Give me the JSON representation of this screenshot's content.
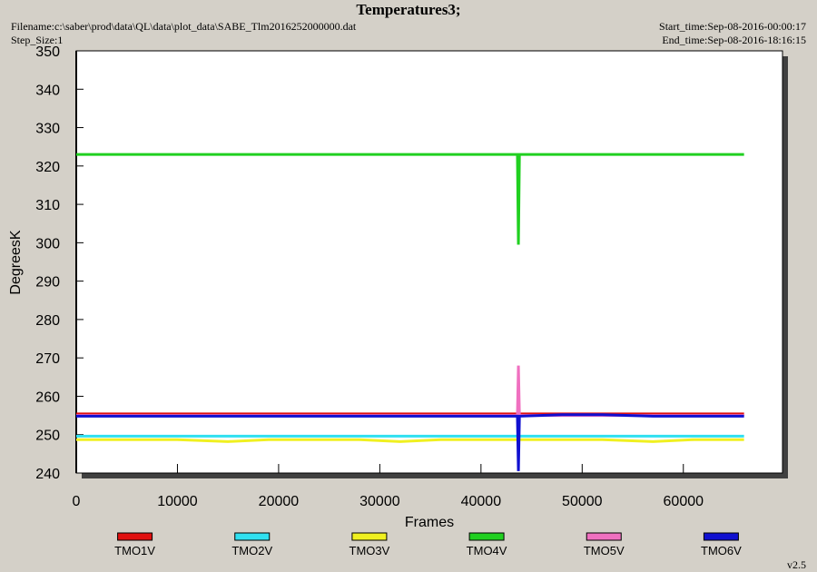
{
  "chart_data": {
    "type": "line",
    "title": "Temperatures3;",
    "filename": "Filename:c:\\saber\\prod\\data\\QL\\data\\plot_data\\SABE_Tlm2016252000000.dat",
    "step_size": "Step_Size:1",
    "start_time": "Start_time:Sep-08-2016-00:00:17",
    "end_time": "End_time:Sep-08-2016-18:16:15",
    "version": "v2.5",
    "x_label": "Frames",
    "y_label": "DegreesK",
    "xlim": [
      0,
      69800
    ],
    "ylim": [
      240,
      350
    ],
    "xticks": [
      0,
      10000,
      20000,
      30000,
      40000,
      50000,
      60000
    ],
    "yticks": [
      240,
      250,
      260,
      270,
      280,
      290,
      300,
      310,
      320,
      330,
      340,
      350
    ],
    "x": [
      0,
      5000,
      10000,
      15000,
      19000,
      23000,
      28000,
      32000,
      36000,
      40000,
      43600,
      43700,
      43800,
      48000,
      52000,
      57000,
      61000,
      66000
    ],
    "series": [
      {
        "name": "TMO1V",
        "color": "#e01010",
        "values": [
          255.4,
          255.4,
          255.4,
          255.4,
          255.4,
          255.4,
          255.4,
          255.4,
          255.4,
          255.4,
          255.4,
          255.4,
          255.4,
          255.4,
          255.4,
          255.4,
          255.4,
          255.4
        ]
      },
      {
        "name": "TMO2V",
        "color": "#30e0f0",
        "values": [
          249.6,
          249.6,
          249.6,
          249.6,
          249.6,
          249.6,
          249.6,
          249.6,
          249.6,
          249.6,
          249.6,
          249.6,
          249.6,
          249.6,
          249.6,
          249.6,
          249.6,
          249.6
        ]
      },
      {
        "name": "TMO3V",
        "color": "#f0f020",
        "values": [
          248.7,
          248.7,
          248.7,
          248.2,
          248.7,
          248.7,
          248.7,
          248.2,
          248.7,
          248.7,
          248.7,
          248.7,
          248.7,
          248.7,
          248.7,
          248.2,
          248.7,
          248.7
        ]
      },
      {
        "name": "TMO4V",
        "color": "#20d020",
        "values": [
          323,
          323,
          323,
          323,
          323,
          323,
          323,
          323,
          323,
          323,
          323,
          299.5,
          323,
          323,
          323,
          323,
          323,
          323
        ]
      },
      {
        "name": "TMO5V",
        "color": "#f070c0",
        "values": [
          255,
          255,
          255,
          255,
          255,
          255,
          255,
          255,
          255,
          255,
          255,
          268,
          255,
          255,
          255,
          255,
          255,
          255
        ]
      },
      {
        "name": "TMO6V",
        "color": "#1010d0",
        "values": [
          254.8,
          254.8,
          254.8,
          254.8,
          254.8,
          254.8,
          254.8,
          254.8,
          254.8,
          254.8,
          254.8,
          240.5,
          254.8,
          255.2,
          255.2,
          254.8,
          254.8,
          254.8
        ]
      }
    ]
  }
}
